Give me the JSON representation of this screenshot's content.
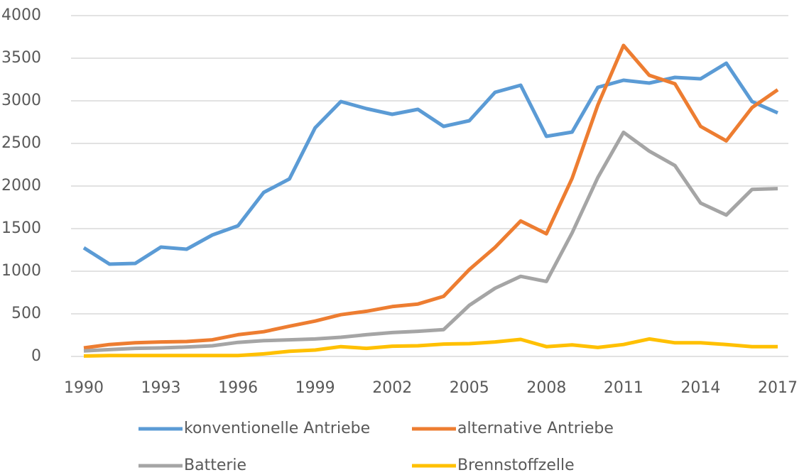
{
  "chart_data": {
    "type": "line",
    "x": [
      1990,
      1991,
      1992,
      1993,
      1994,
      1995,
      1996,
      1997,
      1998,
      1999,
      2000,
      2001,
      2002,
      2003,
      2004,
      2005,
      2006,
      2007,
      2008,
      2009,
      2010,
      2011,
      2012,
      2013,
      2014,
      2015,
      2016,
      2017
    ],
    "series": [
      {
        "name": "konventionelle Antriebe",
        "color": "#5b9bd5",
        "values": [
          1275,
          1083,
          1092,
          1283,
          1258,
          1425,
          1533,
          1925,
          2083,
          2683,
          2992,
          2908,
          2842,
          2900,
          2700,
          2767,
          3100,
          3183,
          2583,
          2633,
          3158,
          3242,
          3208,
          3275,
          3258,
          3442,
          2992,
          2858
        ]
      },
      {
        "name": "alternative Antriebe",
        "color": "#ed7d31",
        "values": [
          100,
          140,
          160,
          170,
          175,
          195,
          255,
          290,
          355,
          415,
          490,
          530,
          585,
          615,
          705,
          1020,
          1280,
          1590,
          1440,
          2090,
          2950,
          3650,
          3300,
          3200,
          2700,
          2530,
          2920,
          3130
        ]
      },
      {
        "name": "Batterie",
        "color": "#a5a5a5",
        "values": [
          65,
          80,
          95,
          100,
          110,
          125,
          165,
          185,
          195,
          205,
          225,
          255,
          280,
          295,
          315,
          600,
          800,
          940,
          880,
          1450,
          2100,
          2630,
          2410,
          2240,
          1800,
          1660,
          1960,
          1970
        ]
      },
      {
        "name": "Brennstoffzelle",
        "color": "#ffc000",
        "values": [
          5,
          10,
          10,
          10,
          10,
          10,
          10,
          30,
          60,
          75,
          115,
          95,
          120,
          125,
          145,
          150,
          170,
          200,
          115,
          135,
          105,
          140,
          205,
          160,
          160,
          140,
          115,
          115
        ]
      }
    ],
    "xlim": [
      1990,
      2017
    ],
    "xticks": [
      1990,
      1993,
      1996,
      1999,
      2002,
      2005,
      2008,
      2011,
      2014,
      2017
    ],
    "ylim": [
      0,
      4000
    ],
    "yticks": [
      0,
      500,
      1000,
      1500,
      2000,
      2500,
      3000,
      3500,
      4000
    ],
    "grid": true,
    "legend": "bottom"
  }
}
